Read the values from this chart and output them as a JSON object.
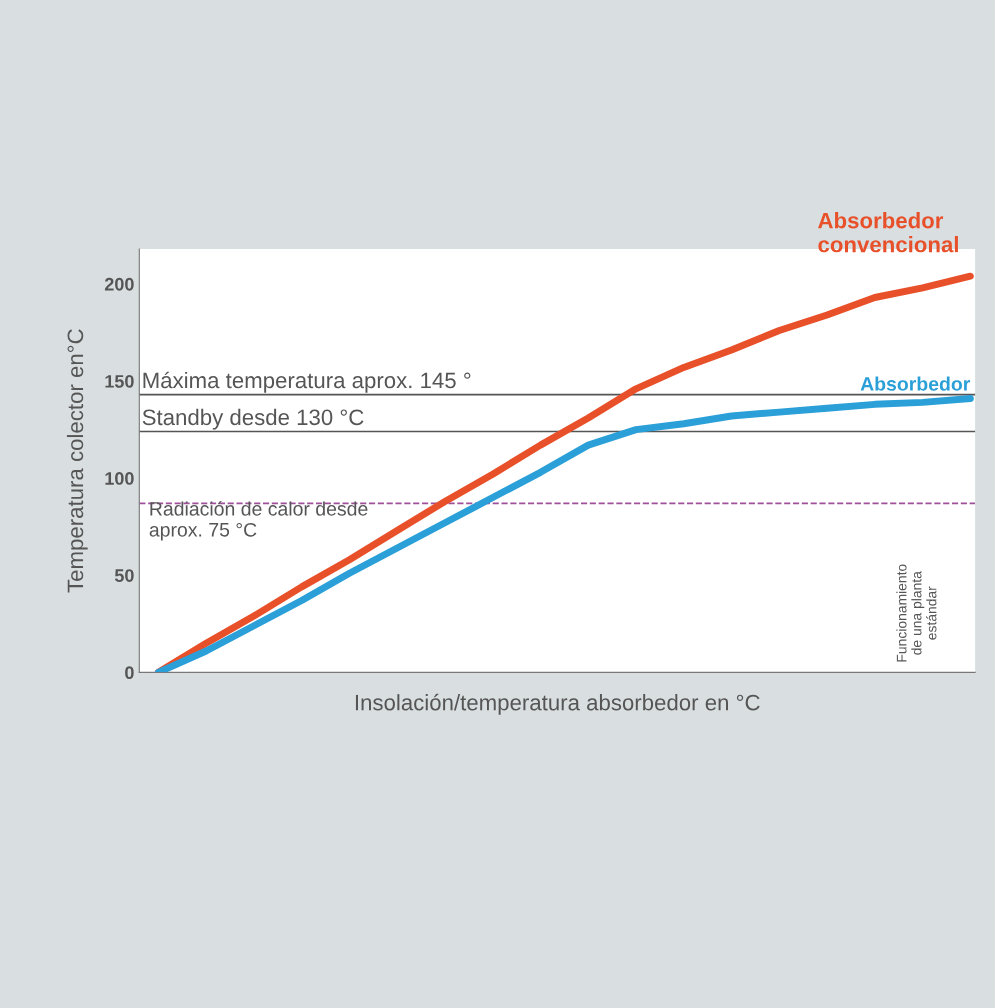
{
  "chart_data": {
    "type": "line",
    "xlabel": "Insolación/temperatura absorbedor en °C",
    "ylabel": "Temperatura colector en°C",
    "categories": [
      null,
      null,
      null,
      null,
      null,
      null,
      null,
      null,
      null,
      null,
      null,
      null,
      null,
      null,
      null,
      null,
      null,
      null
    ],
    "series": [
      {
        "name": "Absorbedor convencional",
        "color": "#e8502a",
        "values": [
          0,
          15,
          29,
          44,
          58,
          73,
          88,
          102,
          117,
          131,
          146,
          157,
          166,
          176,
          184,
          193,
          198,
          204
        ]
      },
      {
        "name": "Absorbedor",
        "color": "#2a9fd8",
        "values": [
          0,
          11,
          24,
          37,
          51,
          64,
          77,
          90,
          103,
          117,
          125,
          128,
          132,
          134,
          136,
          138,
          139,
          141
        ]
      }
    ],
    "ylim": [
      0,
      218
    ],
    "yticks": [
      0,
      50,
      100,
      150,
      200
    ],
    "ref_lines": [
      {
        "axis": "y",
        "value": 143,
        "label": "Máxima temperatura aprox. 145 °",
        "color": "#555555",
        "line_style": "solid"
      },
      {
        "axis": "y",
        "value": 124,
        "label": "Standby desde 130 °C",
        "color": "#555555",
        "line_style": "solid"
      },
      {
        "axis": "y",
        "value": 87,
        "label": "Radiación de calor desde\naprox. 75 °C",
        "color": "#a0509a",
        "line_style": "dashed"
      }
    ],
    "annotations": [
      "Funcionamiento\nde una planta\nestándar"
    ],
    "grid": false,
    "legend": false,
    "marker": "none",
    "line_style": "solid"
  }
}
